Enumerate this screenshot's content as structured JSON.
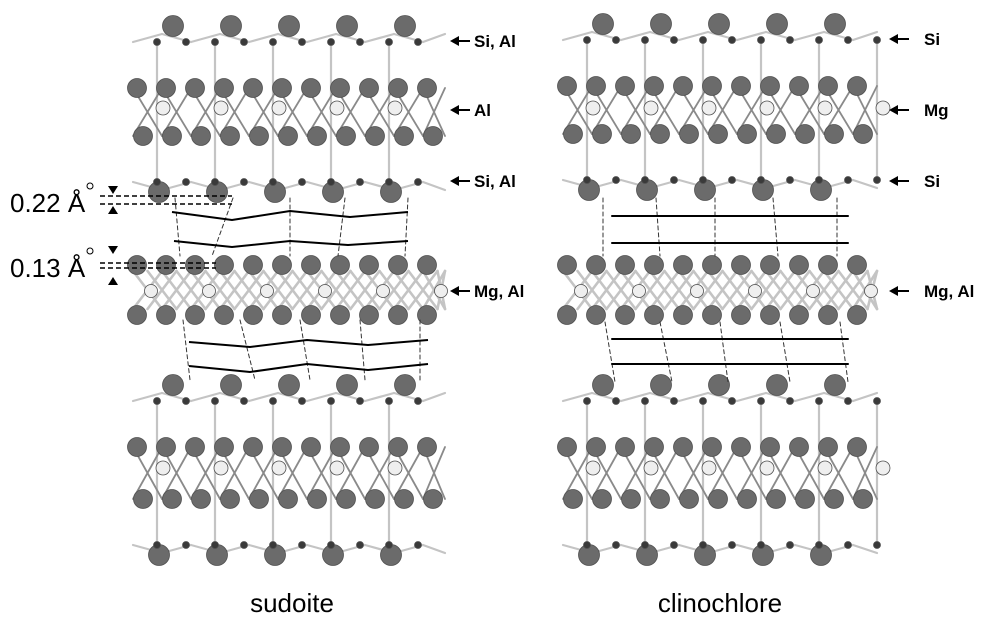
{
  "panels": [
    {
      "id": "sudoite",
      "caption": "sudoite",
      "layer_labels": [
        "Si, Al",
        "Al",
        "Si, Al",
        "Mg, Al"
      ],
      "distances": [
        "0.22 Å",
        "0.13 Å"
      ]
    },
    {
      "id": "clinochlore",
      "caption": "clinochlore",
      "layer_labels": [
        "Si",
        "Mg",
        "Si",
        "Mg, Al"
      ]
    }
  ],
  "colors": {
    "atom_dark": "#6b6b6b",
    "atom_small": "#3a3a3a",
    "atom_light": "#efefef",
    "bond_light": "#c4c4c4",
    "bond_dark": "#8a8a8a"
  }
}
